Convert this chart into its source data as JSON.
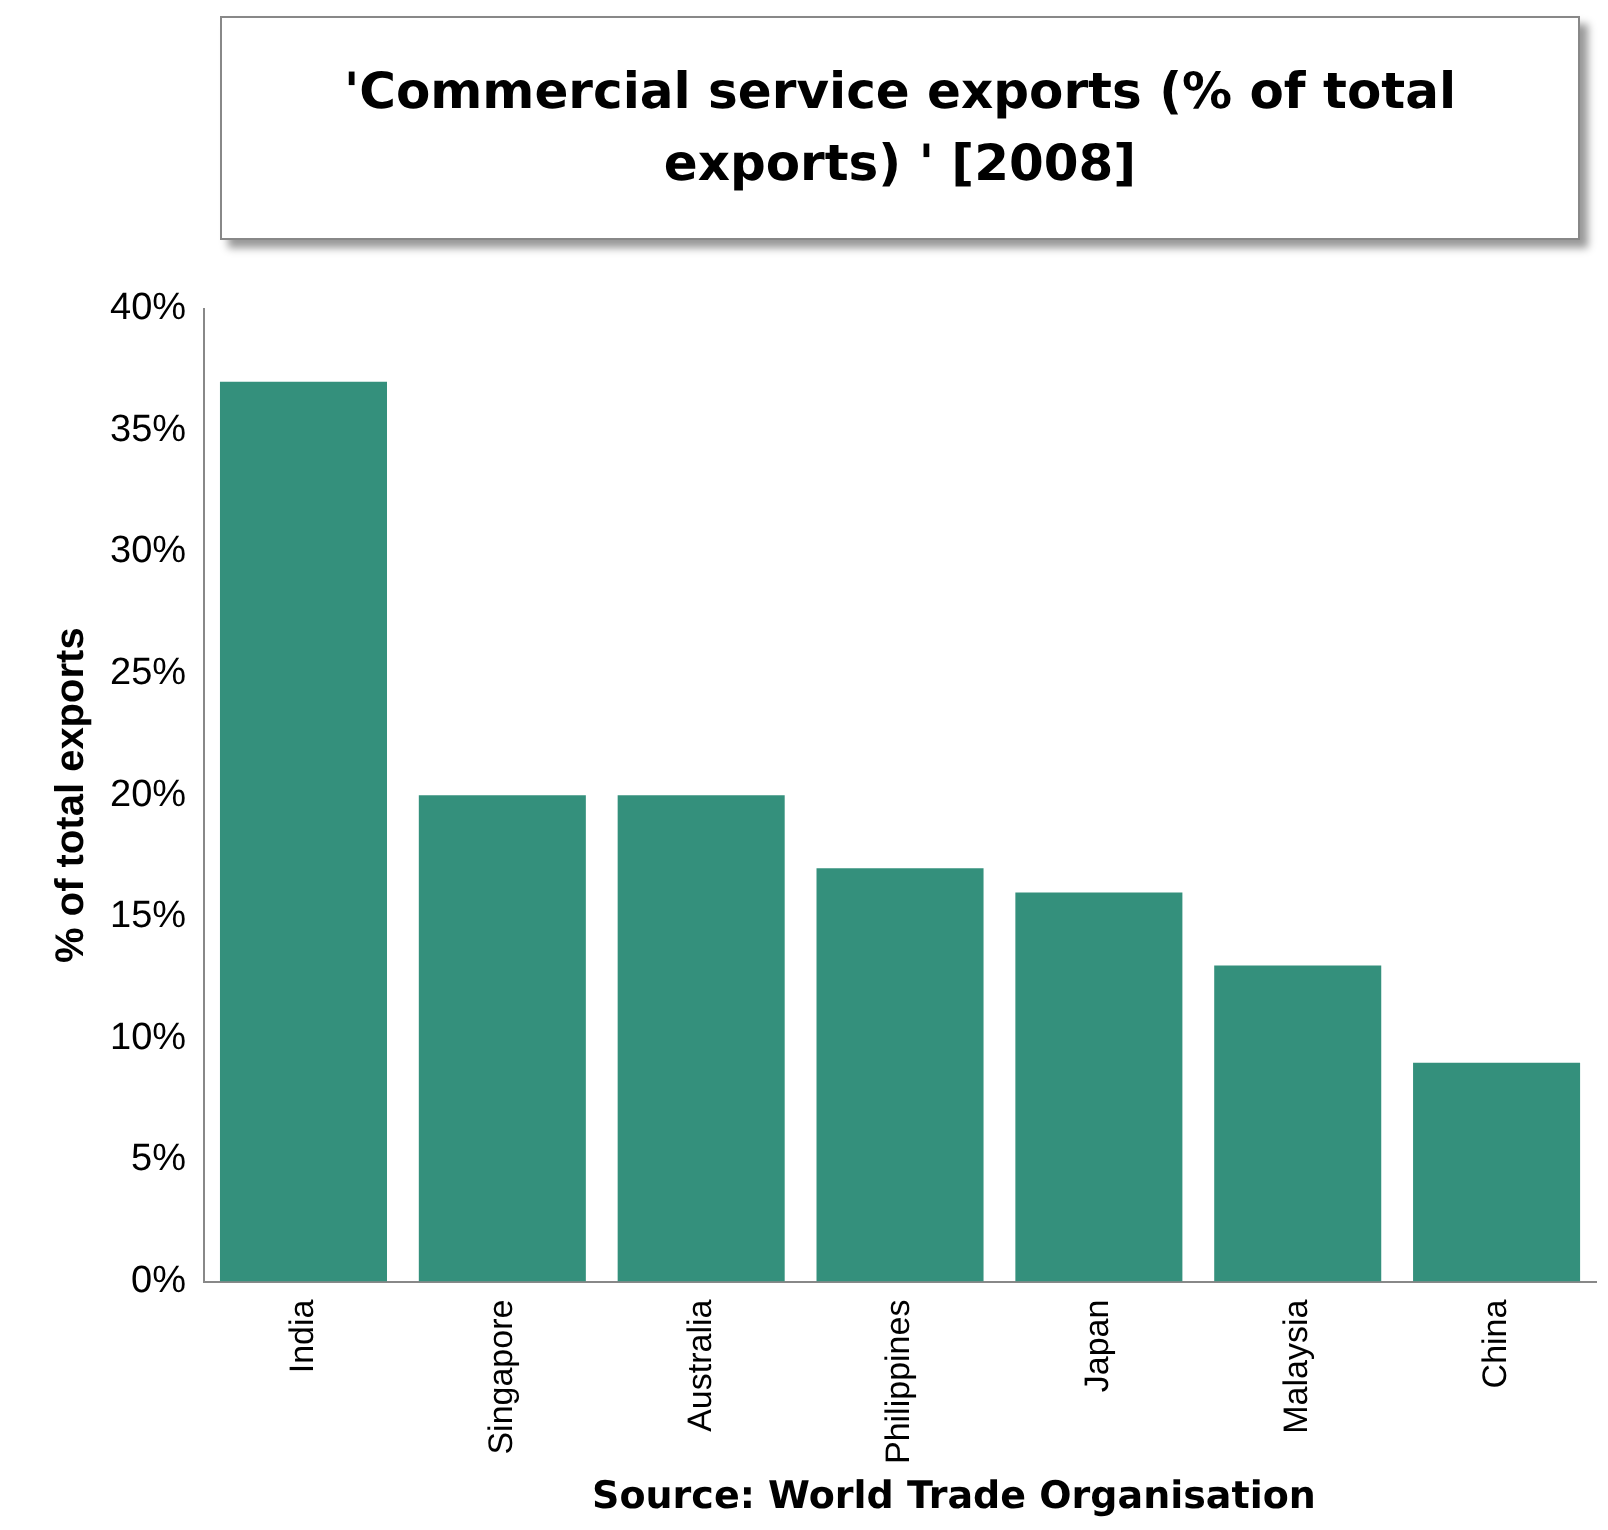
{
  "chart_data": {
    "type": "bar",
    "title": "'Commercial service exports (% of total exports) ' [2008]",
    "ylabel": "% of total exports",
    "categories": [
      "India",
      "Singapore",
      "Australia",
      "Philippines",
      "Japan",
      "Malaysia",
      "China"
    ],
    "values": [
      37,
      20,
      20,
      17,
      16,
      13,
      9
    ],
    "color": "#34907c",
    "ylim": [
      0,
      40
    ],
    "yticks": [
      {
        "value": 0,
        "label": "0%"
      },
      {
        "value": 5,
        "label": "5%"
      },
      {
        "value": 10,
        "label": "10%"
      },
      {
        "value": 15,
        "label": "15%"
      },
      {
        "value": 20,
        "label": "20%"
      },
      {
        "value": 25,
        "label": "25%"
      },
      {
        "value": 30,
        "label": "30%"
      },
      {
        "value": 35,
        "label": "35%"
      },
      {
        "value": 40,
        "label": "40%"
      }
    ],
    "grid": false,
    "legend": false,
    "annotations": [
      "Source: World Trade Organisation"
    ]
  }
}
